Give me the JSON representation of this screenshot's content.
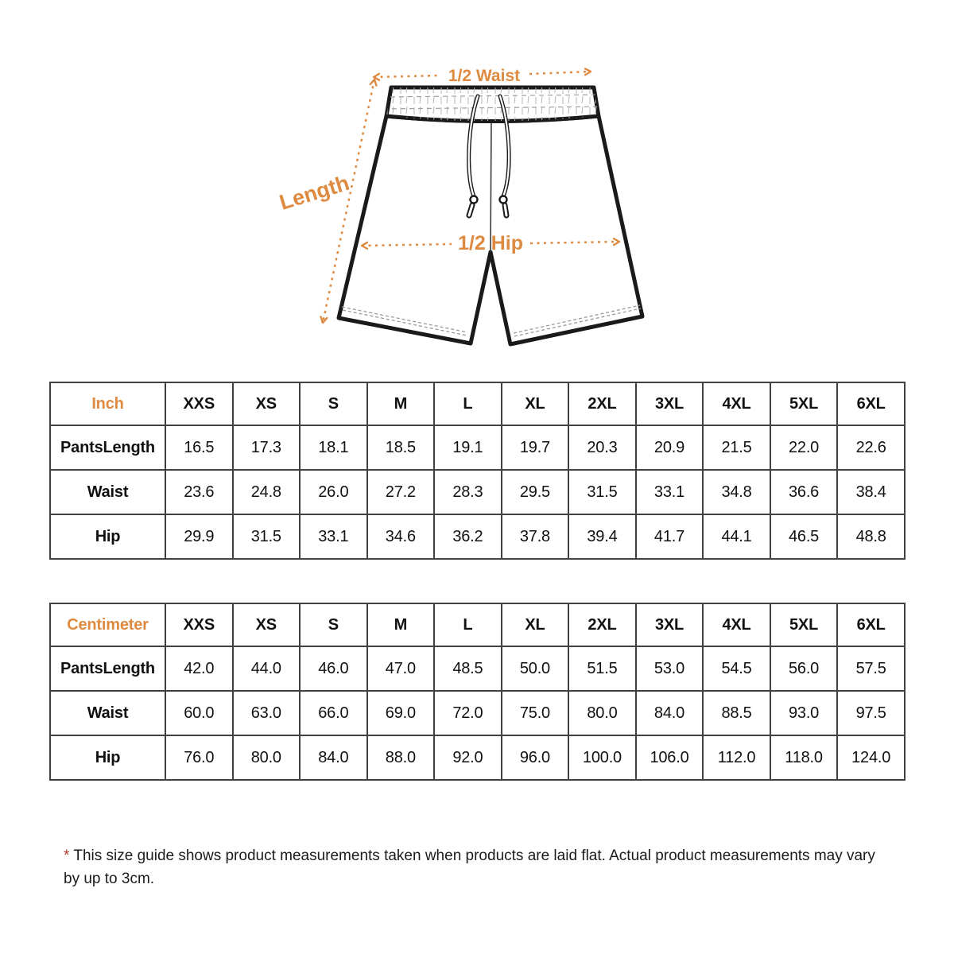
{
  "colors": {
    "accent_orange": "#de8a40",
    "asterisk_red": "#b03a2e",
    "table_border": "#404040",
    "outline_black": "#1a1a1a"
  },
  "diagram": {
    "labels": {
      "half_waist": "1/2 Waist",
      "length": "Length",
      "half_hip": "1/2 Hip"
    }
  },
  "tables": [
    {
      "unit_label": "Inch",
      "size_headers": [
        "XXS",
        "XS",
        "S",
        "M",
        "L",
        "XL",
        "2XL",
        "3XL",
        "4XL",
        "5XL",
        "6XL"
      ],
      "rows": [
        {
          "label": "PantsLength",
          "values": [
            "16.5",
            "17.3",
            "18.1",
            "18.5",
            "19.1",
            "19.7",
            "20.3",
            "20.9",
            "21.5",
            "22.0",
            "22.6"
          ]
        },
        {
          "label": "Waist",
          "values": [
            "23.6",
            "24.8",
            "26.0",
            "27.2",
            "28.3",
            "29.5",
            "31.5",
            "33.1",
            "34.8",
            "36.6",
            "38.4"
          ]
        },
        {
          "label": "Hip",
          "values": [
            "29.9",
            "31.5",
            "33.1",
            "34.6",
            "36.2",
            "37.8",
            "39.4",
            "41.7",
            "44.1",
            "46.5",
            "48.8"
          ]
        }
      ]
    },
    {
      "unit_label": "Centimeter",
      "size_headers": [
        "XXS",
        "XS",
        "S",
        "M",
        "L",
        "XL",
        "2XL",
        "3XL",
        "4XL",
        "5XL",
        "6XL"
      ],
      "rows": [
        {
          "label": "PantsLength",
          "values": [
            "42.0",
            "44.0",
            "46.0",
            "47.0",
            "48.5",
            "50.0",
            "51.5",
            "53.0",
            "54.5",
            "56.0",
            "57.5"
          ]
        },
        {
          "label": "Waist",
          "values": [
            "60.0",
            "63.0",
            "66.0",
            "69.0",
            "72.0",
            "75.0",
            "80.0",
            "84.0",
            "88.5",
            "93.0",
            "97.5"
          ]
        },
        {
          "label": "Hip",
          "values": [
            "76.0",
            "80.0",
            "84.0",
            "88.0",
            "92.0",
            "96.0",
            "100.0",
            "106.0",
            "112.0",
            "118.0",
            "124.0"
          ]
        }
      ]
    }
  ],
  "footnote": {
    "asterisk": "*",
    "text": "This size guide shows product measurements taken when products are laid flat. Actual product measurements may vary by up to 3cm."
  }
}
